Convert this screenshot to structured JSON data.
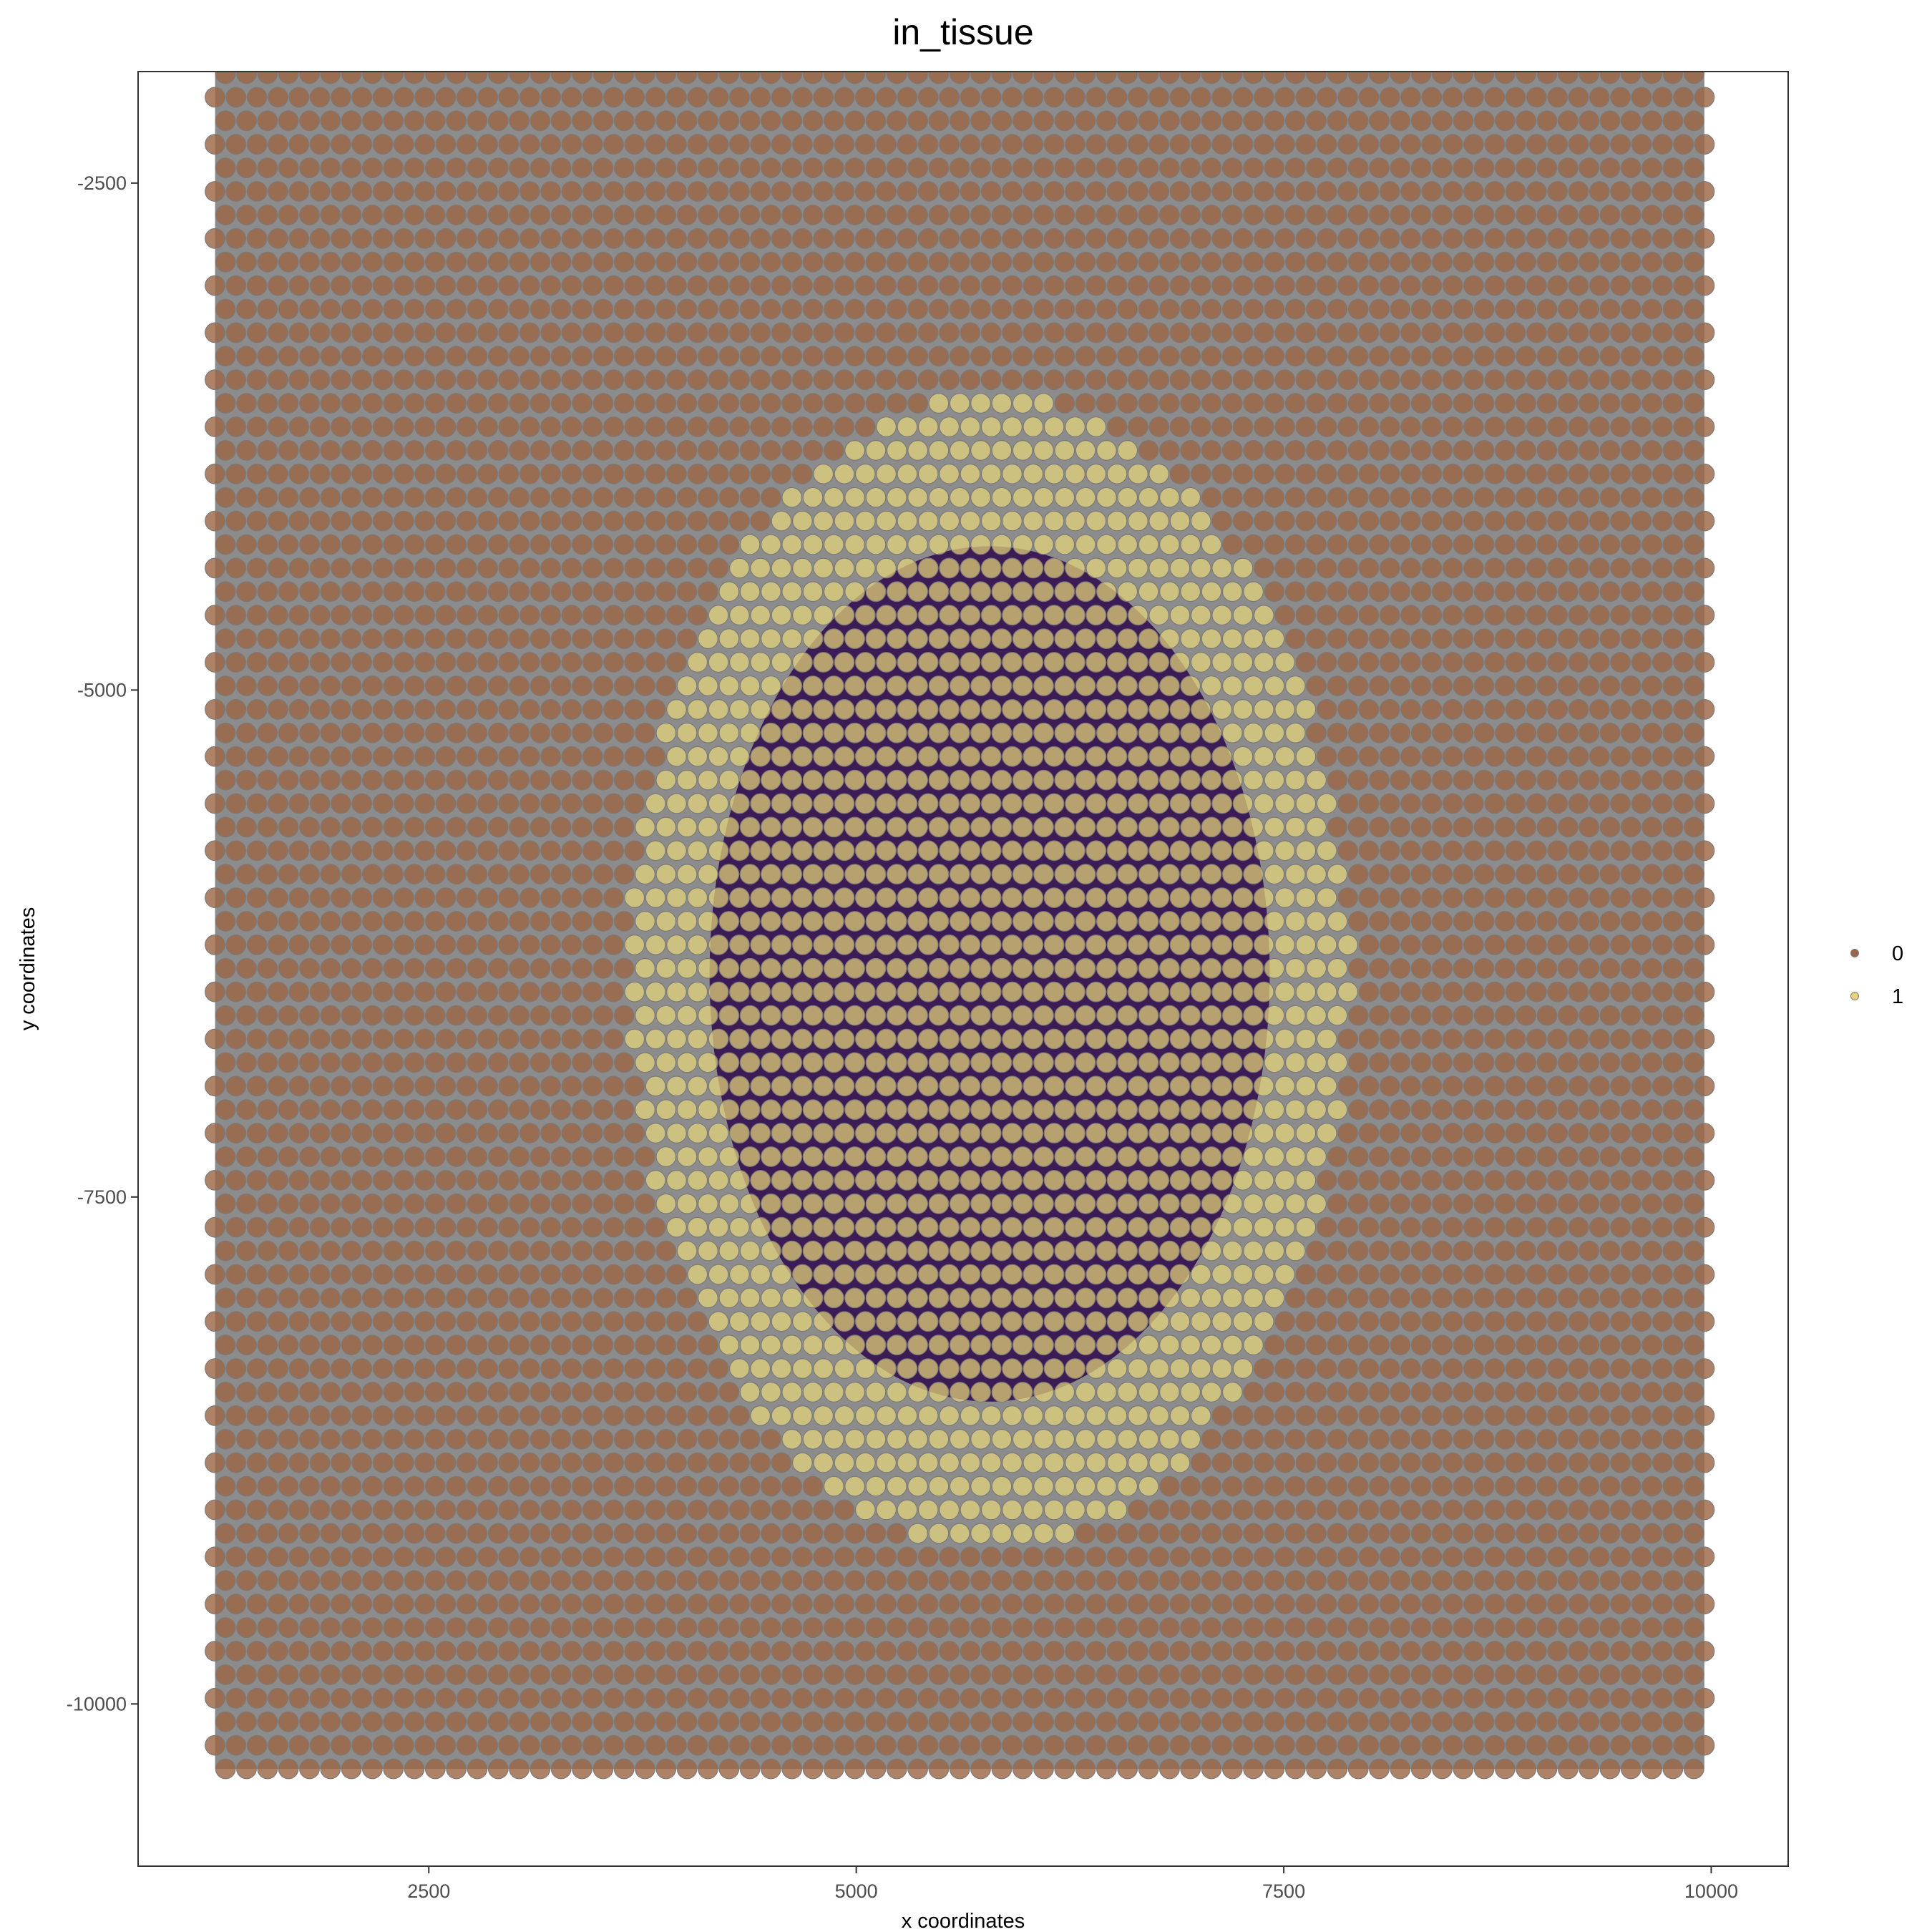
{
  "chart_data": {
    "type": "scatter",
    "title": "in_tissue",
    "xlabel": "x coordinates",
    "ylabel": "y coordinates",
    "xlim": [
      800,
      10450
    ],
    "ylim": [
      -10800,
      -1950
    ],
    "x_ticks": [
      2500,
      5000,
      7500,
      10000
    ],
    "y_ticks": [
      -2500,
      -5000,
      -7500,
      -10000
    ],
    "grid": false,
    "legend_position": "right",
    "spot_grid": {
      "x_min": 1250,
      "x_max": 9960,
      "y_min": -10320,
      "y_max": -1380,
      "row_count": 78,
      "col_count": 72
    },
    "tissue_region": {
      "center": [
        5780,
        -6400
      ],
      "radius_x": 2100,
      "radius_y": 2850
    },
    "series": [
      {
        "name": "0",
        "color": "#9c6644"
      },
      {
        "name": "1",
        "color": "#e5d57a"
      }
    ],
    "background_color": "#8c8c8c",
    "tissue_core_color": "#3d1c55"
  }
}
